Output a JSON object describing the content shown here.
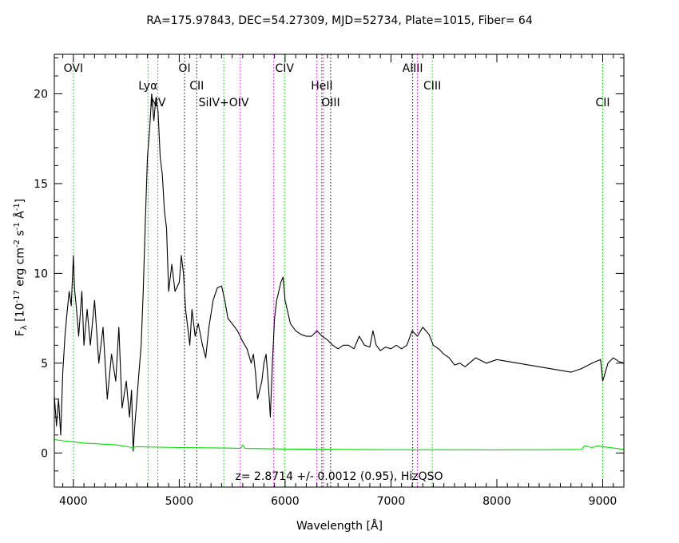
{
  "chart_data": {
    "type": "line",
    "title": "RA=175.97843, DEC=54.27309, MJD=52734, Plate=1015, Fiber= 64",
    "xlabel": "Wavelength [Å]",
    "ylabel": "F_λ [10^-17 erg cm^-2 s^-1 Å^-1]",
    "annotation": "z= 2.8714 +/- 0.0012 (0.95), HizQSO",
    "xlim": [
      3820,
      9200
    ],
    "ylim": [
      -1.9,
      22.2
    ],
    "xticks": [
      4000,
      5000,
      6000,
      7000,
      8000,
      9000
    ],
    "yticks": [
      0,
      5,
      10,
      15,
      20
    ],
    "colors": {
      "flux": "#000000",
      "error": "#00dd00",
      "emission": "#00cc00",
      "absorption": "#000000",
      "sky": "#dd00dd"
    },
    "series": [
      {
        "role": "flux",
        "x": [
          3820,
          3840,
          3860,
          3880,
          3900,
          3920,
          3940,
          3960,
          3980,
          4000,
          4010,
          4030,
          4050,
          4080,
          4100,
          4130,
          4160,
          4200,
          4240,
          4280,
          4320,
          4360,
          4400,
          4430,
          4460,
          4500,
          4530,
          4550,
          4565,
          4580,
          4600,
          4620,
          4640,
          4660,
          4680,
          4700,
          4720,
          4740,
          4760,
          4780,
          4800,
          4820,
          4840,
          4860,
          4880,
          4900,
          4930,
          4960,
          5000,
          5020,
          5040,
          5060,
          5080,
          5100,
          5120,
          5150,
          5180,
          5220,
          5250,
          5280,
          5320,
          5360,
          5400,
          5430,
          5460,
          5500,
          5550,
          5600,
          5640,
          5680,
          5700,
          5720,
          5740,
          5760,
          5780,
          5800,
          5820,
          5840,
          5860,
          5880,
          5900,
          5920,
          5940,
          5960,
          5980,
          6000,
          6050,
          6100,
          6150,
          6200,
          6250,
          6300,
          6350,
          6400,
          6450,
          6500,
          6550,
          6600,
          6650,
          6700,
          6750,
          6800,
          6830,
          6860,
          6900,
          6950,
          7000,
          7050,
          7100,
          7150,
          7200,
          7250,
          7300,
          7330,
          7360,
          7400,
          7450,
          7500,
          7550,
          7600,
          7650,
          7700,
          7800,
          7900,
          8000,
          8100,
          8200,
          8300,
          8400,
          8500,
          8600,
          8700,
          8800,
          8900,
          8980,
          9000,
          9050,
          9100,
          9150,
          9200
        ],
        "y": [
          3.2,
          1.5,
          3.0,
          1.0,
          4.5,
          6.5,
          7.8,
          9.0,
          8.2,
          11.0,
          9.2,
          8.0,
          6.5,
          9.0,
          6.0,
          8.0,
          6.0,
          8.5,
          5.0,
          7.0,
          3.0,
          5.5,
          4.0,
          7.0,
          2.5,
          4.0,
          2.0,
          3.5,
          0.1,
          1.5,
          3.0,
          4.5,
          6.0,
          9.0,
          13.0,
          16.5,
          18.0,
          20.0,
          18.5,
          19.8,
          19.0,
          16.5,
          15.5,
          13.5,
          12.5,
          9.0,
          10.5,
          9.0,
          9.5,
          11.0,
          10.0,
          8.0,
          7.0,
          6.0,
          8.0,
          6.5,
          7.2,
          6.0,
          5.3,
          7.0,
          8.5,
          9.2,
          9.3,
          8.5,
          7.5,
          7.2,
          6.8,
          6.2,
          5.8,
          5.0,
          5.5,
          4.5,
          3.0,
          3.5,
          4.0,
          5.0,
          5.5,
          4.0,
          2.0,
          5.0,
          7.5,
          8.5,
          9.0,
          9.5,
          9.8,
          8.5,
          7.2,
          6.8,
          6.6,
          6.5,
          6.5,
          6.8,
          6.5,
          6.3,
          6.0,
          5.8,
          6.0,
          6.0,
          5.8,
          6.5,
          6.0,
          5.9,
          6.8,
          6.0,
          5.7,
          5.9,
          5.8,
          6.0,
          5.8,
          6.0,
          6.8,
          6.5,
          7.0,
          6.8,
          6.6,
          6.0,
          5.8,
          5.5,
          5.3,
          4.9,
          5.0,
          4.8,
          5.3,
          5.0,
          5.2,
          5.1,
          5.0,
          4.9,
          4.8,
          4.7,
          4.6,
          4.5,
          4.7,
          5.0,
          5.2,
          4.0,
          5.0,
          5.3,
          5.1,
          5.0
        ]
      },
      {
        "role": "error",
        "x": [
          3820,
          3900,
          4000,
          4100,
          4200,
          4400,
          4560,
          4600,
          5000,
          5500,
          5580,
          5600,
          5620,
          6000,
          6500,
          7000,
          7500,
          8000,
          8500,
          8800,
          8830,
          8900,
          8950,
          9000,
          9200
        ],
        "y": [
          0.75,
          0.68,
          0.62,
          0.55,
          0.52,
          0.45,
          0.3,
          0.35,
          0.3,
          0.27,
          0.25,
          0.45,
          0.25,
          0.22,
          0.2,
          0.18,
          0.18,
          0.17,
          0.18,
          0.2,
          0.4,
          0.3,
          0.4,
          0.35,
          0.2
        ]
      }
    ],
    "lines": [
      {
        "label": "OVI",
        "x": 4000,
        "kind": "emission",
        "row": 0
      },
      {
        "label": "Lyα",
        "x": 4705,
        "kind": "emission",
        "row": 1
      },
      {
        "label": "NV",
        "x": 4797,
        "kind": "emission",
        "row": 2
      },
      {
        "label": "OI",
        "x": 5050,
        "kind": "absorption",
        "row": 0
      },
      {
        "label": "CII",
        "x": 5165,
        "kind": "absorption",
        "row": 1
      },
      {
        "label": "SiIV+OIV",
        "x": 5420,
        "kind": "emission",
        "row": 2
      },
      {
        "label": "",
        "x": 5577,
        "kind": "sky",
        "row": -1
      },
      {
        "label": "",
        "x": 5893,
        "kind": "sky",
        "row": -1
      },
      {
        "label": "CIV",
        "x": 5995,
        "kind": "emission",
        "row": 0
      },
      {
        "label": "",
        "x": 6300,
        "kind": "sky",
        "row": -1
      },
      {
        "label": "HeII",
        "x": 6347,
        "kind": "absorption",
        "row": 1
      },
      {
        "label": "",
        "x": 6364,
        "kind": "sky",
        "row": -1
      },
      {
        "label": "OIII",
        "x": 6430,
        "kind": "absorption",
        "row": 2
      },
      {
        "label": "AlIII",
        "x": 7205,
        "kind": "absorption",
        "row": 0
      },
      {
        "label": "",
        "x": 7250,
        "kind": "sky",
        "row": -1
      },
      {
        "label": "CIII",
        "x": 7390,
        "kind": "emission",
        "row": 1
      },
      {
        "label": "CII",
        "x": 9000,
        "kind": "emission",
        "row": 2
      }
    ]
  }
}
